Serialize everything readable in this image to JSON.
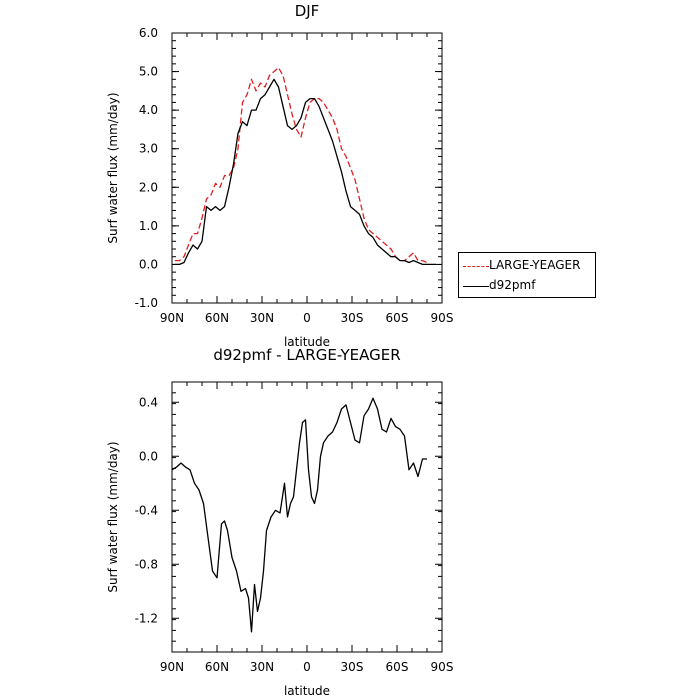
{
  "chart_data": [
    {
      "type": "line",
      "title": "DJF",
      "xlabel": "latitude",
      "ylabel": "Surf water flux (mm/day)",
      "xlim": [
        90,
        -90
      ],
      "ylim": [
        -1.0,
        6.0
      ],
      "x_tick_labels": [
        "90N",
        "60N",
        "30N",
        "0",
        "30S",
        "60S",
        "90S"
      ],
      "x_tick_values": [
        90,
        60,
        30,
        0,
        -30,
        -60,
        -90
      ],
      "y_tick_labels": [
        "-1.0",
        "0.0",
        "1.0",
        "2.0",
        "3.0",
        "4.0",
        "5.0",
        "6.0"
      ],
      "y_tick_values": [
        -1,
        0,
        1,
        2,
        3,
        4,
        5,
        6
      ],
      "legend": "right",
      "series": [
        {
          "name": "LARGE-YEAGER",
          "color": "#e02020",
          "dash": "dashed",
          "x": [
            88,
            85,
            82,
            79,
            76,
            73,
            70,
            67,
            64,
            61,
            58,
            55,
            52,
            49,
            46,
            43,
            40,
            37,
            34,
            31,
            28,
            25,
            22,
            19,
            16,
            13,
            10,
            7,
            4,
            1,
            -2,
            -5,
            -8,
            -11,
            -14,
            -17,
            -20,
            -23,
            -26,
            -29,
            -32,
            -35,
            -38,
            -41,
            -44,
            -47,
            -50,
            -53,
            -56,
            -59,
            -62,
            -65,
            -68,
            -71,
            -74,
            -77,
            -80
          ],
          "y": [
            0.1,
            0.1,
            0.2,
            0.5,
            0.8,
            0.8,
            1.2,
            1.7,
            1.8,
            2.1,
            2.0,
            2.3,
            2.3,
            2.5,
            3.0,
            4.2,
            4.4,
            4.8,
            4.5,
            4.7,
            4.6,
            4.9,
            5.0,
            5.1,
            4.9,
            4.4,
            3.9,
            3.5,
            3.3,
            3.8,
            4.2,
            4.3,
            4.3,
            4.2,
            4.0,
            3.8,
            3.5,
            3.0,
            2.8,
            2.5,
            2.2,
            1.7,
            1.2,
            0.9,
            0.8,
            0.7,
            0.6,
            0.5,
            0.4,
            0.2,
            0.1,
            0.1,
            0.2,
            0.3,
            0.1,
            0.1,
            0.05
          ]
        },
        {
          "name": "d92pmf",
          "color": "#000000",
          "dash": "solid",
          "x": [
            88,
            85,
            82,
            79,
            76,
            73,
            70,
            67,
            64,
            61,
            58,
            55,
            52,
            49,
            46,
            43,
            40,
            37,
            34,
            31,
            28,
            25,
            22,
            19,
            16,
            13,
            10,
            7,
            4,
            1,
            -2,
            -5,
            -8,
            -11,
            -14,
            -17,
            -20,
            -23,
            -26,
            -29,
            -32,
            -35,
            -38,
            -41,
            -44,
            -47,
            -50,
            -53,
            -56,
            -59,
            -62,
            -65,
            -68,
            -71,
            -74,
            -77,
            -80,
            -83,
            -86
          ],
          "y": [
            0.0,
            0.0,
            0.05,
            0.3,
            0.5,
            0.4,
            0.6,
            1.5,
            1.4,
            1.5,
            1.4,
            1.5,
            2.0,
            2.6,
            3.4,
            3.7,
            3.6,
            4.0,
            4.0,
            4.3,
            4.4,
            4.6,
            4.8,
            4.6,
            4.1,
            3.6,
            3.5,
            3.6,
            3.8,
            4.2,
            4.3,
            4.3,
            4.1,
            3.8,
            3.5,
            3.2,
            2.8,
            2.4,
            1.9,
            1.5,
            1.4,
            1.3,
            1.0,
            0.8,
            0.7,
            0.5,
            0.4,
            0.3,
            0.2,
            0.2,
            0.1,
            0.1,
            0.05,
            0.1,
            0.05,
            0.0,
            0.0,
            0.0,
            0.0
          ]
        }
      ]
    },
    {
      "type": "line",
      "title": "d92pmf - LARGE-YEAGER",
      "xlabel": "latitude",
      "ylabel": "Surf water flux (mm/day)",
      "xlim": [
        90,
        -90
      ],
      "ylim": [
        -1.45,
        0.55
      ],
      "x_tick_labels": [
        "90N",
        "60N",
        "30N",
        "0",
        "30S",
        "60S",
        "90S"
      ],
      "x_tick_values": [
        90,
        60,
        30,
        0,
        -30,
        -60,
        -90
      ],
      "y_tick_labels": [
        "-1.2",
        "-0.8",
        "-0.4",
        "0.0",
        "0.4"
      ],
      "y_tick_values": [
        -1.2,
        -0.8,
        -0.4,
        0.0,
        0.4
      ],
      "series": [
        {
          "name": "",
          "color": "#000000",
          "dash": "solid",
          "x": [
            90,
            87,
            84,
            81,
            78,
            75,
            72,
            69,
            66,
            63,
            60,
            57,
            55,
            53,
            50,
            47,
            44,
            41,
            39,
            37,
            35,
            33,
            31,
            29,
            27,
            24,
            21,
            18,
            15,
            13,
            11,
            9,
            7,
            5,
            3,
            1,
            -1,
            -3,
            -5,
            -7,
            -9,
            -11,
            -14,
            -17,
            -20,
            -23,
            -26,
            -29,
            -32,
            -35,
            -38,
            -41,
            -44,
            -47,
            -50,
            -53,
            -56,
            -59,
            -62,
            -65,
            -68,
            -71,
            -74,
            -77,
            -80
          ],
          "y": [
            -0.1,
            -0.08,
            -0.05,
            -0.08,
            -0.1,
            -0.2,
            -0.25,
            -0.35,
            -0.6,
            -0.85,
            -0.9,
            -0.5,
            -0.48,
            -0.55,
            -0.75,
            -0.85,
            -1.0,
            -0.98,
            -1.05,
            -1.3,
            -0.95,
            -1.15,
            -1.05,
            -0.85,
            -0.55,
            -0.45,
            -0.4,
            -0.42,
            -0.2,
            -0.45,
            -0.35,
            -0.3,
            -0.1,
            0.1,
            0.25,
            0.27,
            -0.1,
            -0.3,
            -0.35,
            -0.25,
            0.0,
            0.1,
            0.15,
            0.18,
            0.25,
            0.35,
            0.38,
            0.25,
            0.12,
            0.1,
            0.3,
            0.35,
            0.43,
            0.35,
            0.2,
            0.18,
            0.28,
            0.22,
            0.2,
            0.15,
            -0.1,
            -0.05,
            -0.15,
            -0.02,
            -0.02
          ]
        }
      ]
    }
  ]
}
